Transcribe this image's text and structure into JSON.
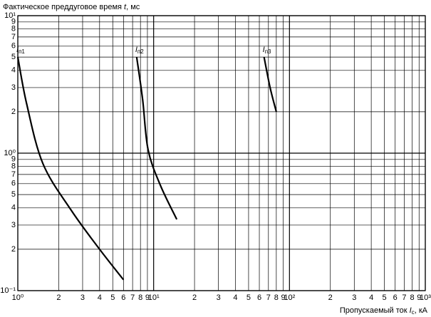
{
  "chart_data": {
    "type": "line",
    "ylabel": {
      "before": "Фактическое преддуговое время ",
      "var": "t",
      "after": ", мс"
    },
    "xlabel": {
      "before": "Пропускаемый ток ",
      "var": "I",
      "sub": "c",
      "after": ", кА"
    },
    "xscale": "log",
    "yscale": "log",
    "grid": true,
    "xlim": [
      1,
      1000
    ],
    "ylim": [
      0.1,
      10
    ],
    "xticks": [
      {
        "value": 1,
        "label": "10⁰"
      },
      2,
      3,
      4,
      5,
      6,
      7,
      8,
      9,
      {
        "value": 10,
        "label": "10¹"
      },
      {
        "value": 20,
        "label": "2"
      },
      {
        "value": 30,
        "label": "3"
      },
      {
        "value": 40,
        "label": "4"
      },
      {
        "value": 50,
        "label": "5"
      },
      {
        "value": 60,
        "label": "6"
      },
      {
        "value": 70,
        "label": "7"
      },
      {
        "value": 80,
        "label": "8"
      },
      {
        "value": 90,
        "label": "9"
      },
      {
        "value": 100,
        "label": "10²"
      },
      {
        "value": 200,
        "label": "2"
      },
      {
        "value": 300,
        "label": "3"
      },
      {
        "value": 400,
        "label": "4"
      },
      {
        "value": 500,
        "label": "5"
      },
      {
        "value": 600,
        "label": "6"
      },
      {
        "value": 700,
        "label": "7"
      },
      {
        "value": 800,
        "label": "8"
      },
      {
        "value": 900,
        "label": "9"
      },
      {
        "value": 1000,
        "label": "10³"
      }
    ],
    "yticks": [
      {
        "value": 0.1,
        "label": "10⁻¹"
      },
      {
        "value": 0.2,
        "label": "2"
      },
      {
        "value": 0.3,
        "label": "3"
      },
      {
        "value": 0.4,
        "label": "4"
      },
      {
        "value": 0.5,
        "label": "5"
      },
      {
        "value": 0.6,
        "label": "6"
      },
      {
        "value": 0.7,
        "label": "7"
      },
      {
        "value": 0.8,
        "label": "8"
      },
      {
        "value": 0.9,
        "label": "9"
      },
      {
        "value": 1,
        "label": "10⁰"
      },
      2,
      3,
      4,
      5,
      6,
      7,
      8,
      9,
      {
        "value": 10,
        "label": "10¹"
      }
    ],
    "series": [
      {
        "label": {
          "main": "I",
          "sub": "п1"
        },
        "color": "#000000",
        "x": [
          1,
          1.16,
          1.53,
          2.47,
          4,
          6
        ],
        "values": [
          5,
          2.3,
          0.84,
          0.385,
          0.2,
          0.12
        ]
      },
      {
        "label": {
          "main": "I",
          "sub": "п2"
        },
        "color": "#000000",
        "x": [
          7.5,
          8.3,
          9.1,
          11.2,
          14.8
        ],
        "values": [
          5,
          2.45,
          1.06,
          0.585,
          0.33
        ]
      },
      {
        "label": {
          "main": "I",
          "sub": "п3"
        },
        "color": "#000000",
        "x": [
          65,
          72,
          80
        ],
        "values": [
          5,
          3,
          2
        ]
      }
    ]
  }
}
